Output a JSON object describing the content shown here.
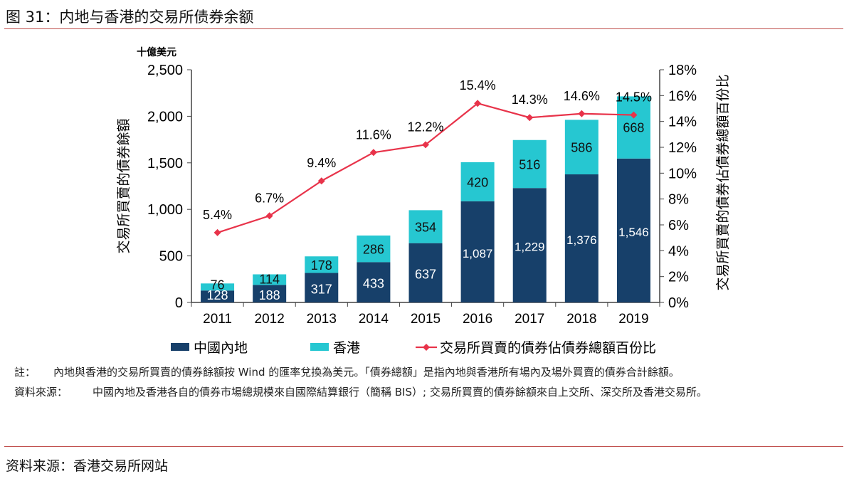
{
  "title": "图 31：内地与香港的交易所债券余额",
  "chart_data": {
    "type": "bar",
    "stacked": true,
    "unit_label": "十億美元",
    "ylabel": "交易所買賣的債券餘額",
    "y2label": "交易所買賣的債券佔債券總額百份比",
    "categories": [
      "2011",
      "2012",
      "2013",
      "2014",
      "2015",
      "2016",
      "2017",
      "2018",
      "2019"
    ],
    "ylim": [
      0,
      2500
    ],
    "yticks": [
      0,
      500,
      1000,
      1500,
      2000,
      2500
    ],
    "ytick_labels": [
      "0",
      "500",
      "1,000",
      "1,500",
      "2,000",
      "2,500"
    ],
    "y2lim": [
      0,
      18
    ],
    "y2ticks": [
      0,
      2,
      4,
      6,
      8,
      10,
      12,
      14,
      16,
      18
    ],
    "y2tick_labels": [
      "0%",
      "2%",
      "4%",
      "6%",
      "8%",
      "10%",
      "12%",
      "14%",
      "16%",
      "18%"
    ],
    "series": [
      {
        "name": "中國內地",
        "type": "bar",
        "color": "#17406a",
        "values": [
          128,
          188,
          317,
          433,
          637,
          1087,
          1229,
          1376,
          1546
        ],
        "labels": [
          "128",
          "188",
          "317",
          "433",
          "637",
          "1,087",
          "1,229",
          "1,376",
          "1,546"
        ]
      },
      {
        "name": "香港",
        "type": "bar",
        "color": "#26c7d1",
        "values": [
          76,
          114,
          178,
          286,
          354,
          420,
          516,
          586,
          668
        ],
        "labels": [
          "76",
          "114",
          "178",
          "286",
          "354",
          "420",
          "516",
          "586",
          "668"
        ]
      },
      {
        "name": "交易所買賣的債券佔債券總額百份比",
        "type": "line",
        "axis": "right",
        "color": "#e8334a",
        "values": [
          5.4,
          6.7,
          9.4,
          11.6,
          12.2,
          15.4,
          14.3,
          14.6,
          14.5
        ],
        "labels": [
          "5.4%",
          "6.7%",
          "9.4%",
          "11.6%",
          "12.2%",
          "15.4%",
          "14.3%",
          "14.6%",
          "14.5%"
        ]
      }
    ],
    "legend_position": "bottom",
    "grid": false
  },
  "notes": [
    {
      "label": "註：",
      "text": "內地與香港的交易所買賣的債券餘額按 Wind 的匯率兌換為美元。「債券總額」是指內地與香港所有場內及場外買賣的債券合計餘額。"
    },
    {
      "label": "資料來源：",
      "text": "中國內地及香港各自的債券市場總規模來自國際結算銀行（簡稱 BIS）; 交易所買賣的債券餘額來自上交所、深交所及香港交易所。"
    }
  ],
  "source": "资料来源：香港交易所网站"
}
